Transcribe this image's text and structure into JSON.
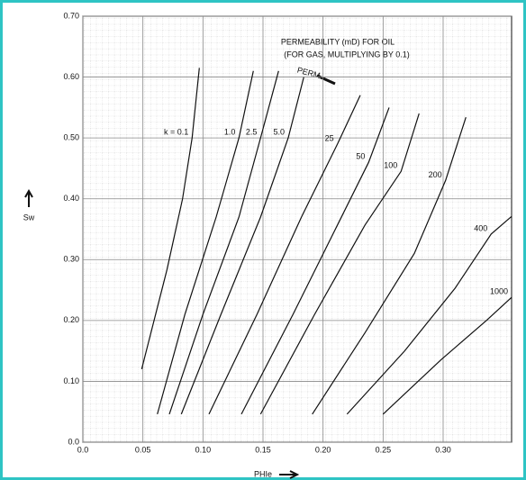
{
  "chart_data": {
    "type": "line",
    "title": "PERMEABILITY (mD) FOR OIL",
    "subtitle": "(FOR GAS, MULTIPLYING BY 0.1)",
    "annotation": "PERM",
    "x_label": "PHIe",
    "y_label": "Sw",
    "xlim": [
      0,
      0.357
    ],
    "ylim": [
      0,
      0.7
    ],
    "xticks": [
      {
        "value": 0,
        "label": "0.0"
      },
      0.05,
      {
        "value": 0.1,
        "label": "0.10"
      },
      0.15,
      {
        "value": 0.2,
        "label": "0.20"
      },
      0.25,
      {
        "value": 0.3,
        "label": "0.30"
      }
    ],
    "yticks": [
      {
        "value": 0,
        "label": "0.0"
      },
      {
        "value": 0.1,
        "label": "0.10"
      },
      {
        "value": 0.2,
        "label": "0.20"
      },
      {
        "value": 0.3,
        "label": "0.30"
      },
      {
        "value": 0.4,
        "label": "0.40"
      },
      {
        "value": 0.5,
        "label": "0.50"
      },
      {
        "value": 0.6,
        "label": "0.60"
      },
      {
        "value": 0.7,
        "label": "0.70"
      }
    ],
    "grid": true,
    "series": [
      {
        "name": "k = 0.1",
        "color": "#111111",
        "x": [
          0.049,
          0.07,
          0.083,
          0.091,
          0.097
        ],
        "values": [
          0.12,
          0.283,
          0.4,
          0.5,
          0.615
        ]
      },
      {
        "name": "1.0",
        "color": "#111111",
        "x": [
          0.062,
          0.085,
          0.111,
          0.13,
          0.142
        ],
        "values": [
          0.046,
          0.21,
          0.37,
          0.5,
          0.61
        ]
      },
      {
        "name": "2.5",
        "color": "#111111",
        "x": [
          0.072,
          0.1,
          0.13,
          0.148,
          0.163
        ],
        "values": [
          0.046,
          0.21,
          0.37,
          0.5,
          0.61
        ]
      },
      {
        "name": "5.0",
        "color": "#111111",
        "x": [
          0.082,
          0.115,
          0.148,
          0.171,
          0.184
        ],
        "values": [
          0.046,
          0.21,
          0.37,
          0.5,
          0.6
        ]
      },
      {
        "name": "25",
        "color": "#111111",
        "x": [
          0.105,
          0.145,
          0.182,
          0.212,
          0.231
        ],
        "values": [
          0.046,
          0.21,
          0.37,
          0.49,
          0.57
        ]
      },
      {
        "name": "50",
        "color": "#111111",
        "x": [
          0.132,
          0.175,
          0.212,
          0.238,
          0.255
        ],
        "values": [
          0.046,
          0.21,
          0.357,
          0.46,
          0.55
        ]
      },
      {
        "name": "100",
        "color": "#111111",
        "x": [
          0.148,
          0.193,
          0.235,
          0.265,
          0.28
        ],
        "values": [
          0.046,
          0.21,
          0.357,
          0.445,
          0.54
        ]
      },
      {
        "name": "200",
        "color": "#111111",
        "x": [
          0.191,
          0.235,
          0.276,
          0.302,
          0.319
        ],
        "values": [
          0.046,
          0.18,
          0.31,
          0.43,
          0.534
        ]
      },
      {
        "name": "400",
        "color": "#111111",
        "x": [
          0.22,
          0.268,
          0.31,
          0.34,
          0.357
        ],
        "values": [
          0.046,
          0.15,
          0.253,
          0.342,
          0.371
        ]
      },
      {
        "name": "1000",
        "color": "#111111",
        "x": [
          0.25,
          0.298,
          0.336,
          0.357
        ],
        "values": [
          0.046,
          0.135,
          0.2,
          0.238
        ]
      }
    ]
  }
}
